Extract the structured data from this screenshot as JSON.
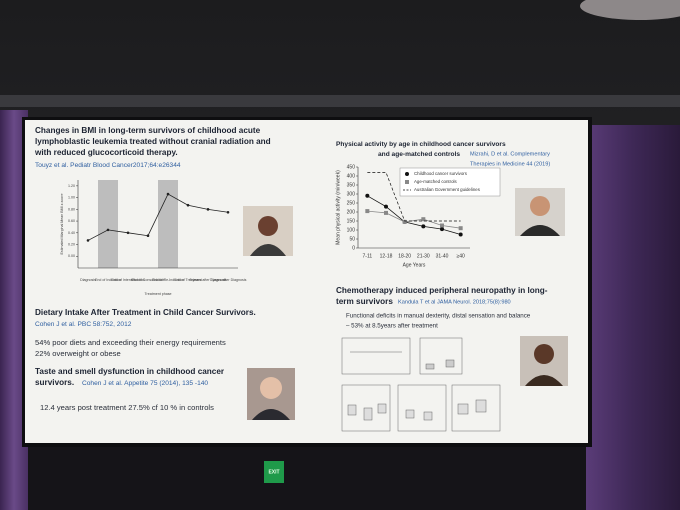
{
  "slide": {
    "bmi_title": [
      "Changes in BMI in long-term survivors of childhood acute",
      "lymphoblastic leukemia treated without cranial radiation and",
      "with reduced glucocorticoid therapy."
    ],
    "bmi_citation": "Touyz et al. Pediatr Blood Cancer2017;64:e26344",
    "diet_title": "Dietary Intake After Treatment in Child Cancer Survivors.",
    "diet_citation": "Cohen J et al.  PBC 58:752, 2012",
    "diet_points": [
      "54% poor diets and exceeding their energy requirements",
      "22% overweight or obese"
    ],
    "taste_title": [
      "Taste and smell dysfunction in childhood cancer",
      "survivors."
    ],
    "taste_citation": "Cohen J et al. Appetite 75 (2014), 135 -140",
    "taste_point": "12.4 years post treatment 27.5% cf 10 % in controls",
    "neuro_title": [
      "Chemotherapy induced peripheral neuropathy in long-",
      "term survivors"
    ],
    "neuro_citation": "Kandula T et al JAMA Neurol. 2018;75(8):980",
    "neuro_points": [
      "Functional deficits in manual dexterity, distal sensation and balance",
      "– 53% at 8.5years after treatment"
    ],
    "exit_sign": "EXIT"
  },
  "chart_data": [
    {
      "type": "line",
      "y_label": "Estimated Marginal Mean BMI z-score",
      "x_label": "Treatment phase",
      "categories": [
        "Diagnosis",
        "End of Induction",
        "End of Intensification",
        "End of Consolidation",
        "End of Re-Induction",
        "End of Treatment",
        "5 years after Diagnosis",
        "7 years after Diagnosis"
      ],
      "series": [
        {
          "name": "BMI z-score",
          "color": "#222222",
          "values": [
            0.27,
            0.45,
            0.4,
            0.35,
            1.06,
            0.87,
            0.8,
            0.75
          ]
        }
      ],
      "ylim": [
        -0.2,
        1.3
      ],
      "yticks": [
        {
          "value": 0,
          "label": "0.00"
        },
        {
          "value": 0.2,
          "label": "0.20"
        },
        {
          "value": 0.4,
          "label": "0.40"
        },
        {
          "value": 0.6,
          "label": "0.60"
        },
        {
          "value": 0.8,
          "label": "0.80"
        },
        {
          "value": 1,
          "label": "1.00"
        },
        {
          "value": 1.2,
          "label": "1.20"
        }
      ]
    },
    {
      "type": "line",
      "title": [
        "Physical activity by age in childhood cancer survivors",
        "and age-matched controls"
      ],
      "citation": [
        "Mizrahi, D et al. Complementary",
        "Therapies in Medicine 44 (2019)"
      ],
      "y_label": "Mean physical activity (min/week)",
      "x_label": "Age Years",
      "categories": [
        "7-11",
        "12-18",
        "18-20",
        "21-30",
        "31-40",
        "≥40"
      ],
      "series": [
        {
          "name": "Childhood cancer survivors",
          "color": "#111111",
          "marker": "circle",
          "values": [
            290,
            230,
            145,
            120,
            105,
            75
          ]
        },
        {
          "name": "Age-matched controls",
          "color": "#888888",
          "marker": "square",
          "values": [
            205,
            195,
            145,
            160,
            125,
            110
          ]
        },
        {
          "name": "Australian Government guidelines",
          "color": "#111111",
          "dashed": true,
          "values": [
            420,
            420,
            150,
            150,
            150,
            150
          ]
        }
      ],
      "ylim": [
        0,
        450
      ],
      "yticks": [
        0,
        50,
        100,
        150,
        200,
        250,
        300,
        350,
        400,
        450
      ]
    }
  ]
}
